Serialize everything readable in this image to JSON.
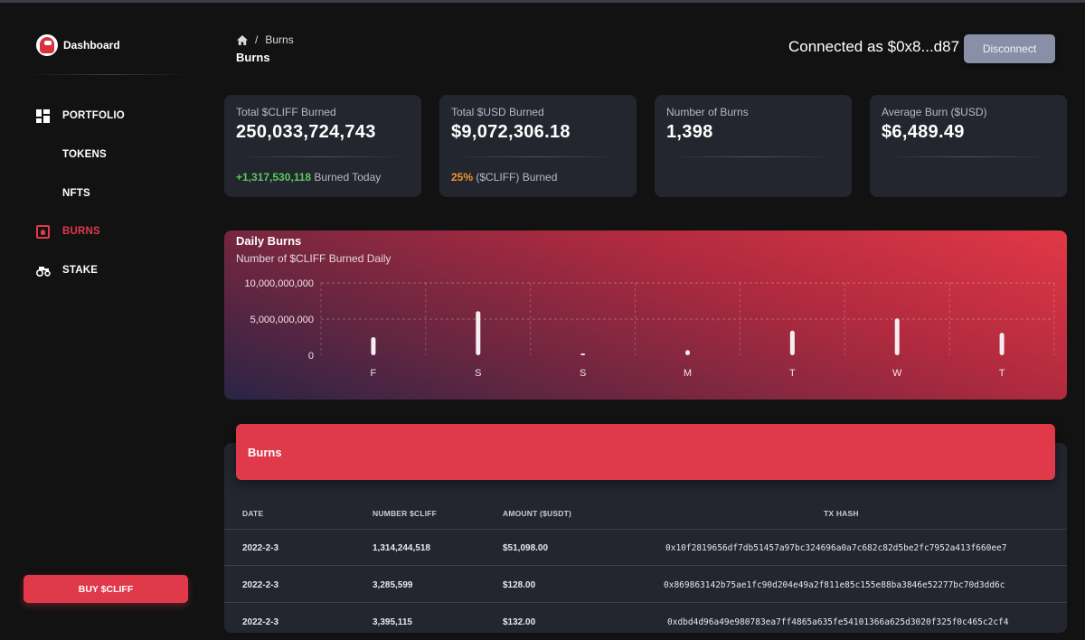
{
  "sidebar": {
    "brand_title": "Dashboard",
    "items": [
      {
        "label": "PORTFOLIO",
        "icon": "grid-icon"
      },
      {
        "label": "TOKENS",
        "icon": ""
      },
      {
        "label": "NFTS",
        "icon": ""
      },
      {
        "label": "BURNS",
        "icon": "flame-icon"
      },
      {
        "label": "STAKE",
        "icon": "tractor-icon"
      }
    ],
    "buy_label": "BUY $CLIFF",
    "active_color": "#e0394a"
  },
  "header": {
    "breadcrumb_current": "Burns",
    "page_title": "Burns",
    "connected_text": "Connected as $0x8...d87",
    "disconnect_label": "Disconnect"
  },
  "stats": [
    {
      "label": "Total $CLIFF Burned",
      "value": "250,033,724,743",
      "foot_highlight": "+1,317,530,118",
      "foot_text": " Burned Today",
      "highlight_color": "#5cc85e"
    },
    {
      "label": "Total $USD Burned",
      "value": "$9,072,306.18",
      "foot_highlight": "25%",
      "foot_text": " ($CLIFF) Burned",
      "highlight_color": "#f09631"
    },
    {
      "label": "Number of Burns",
      "value": "1,398",
      "foot_highlight": "",
      "foot_text": ""
    },
    {
      "label": "Average Burn ($USD)",
      "value": "$6,489.49",
      "foot_highlight": "",
      "foot_text": ""
    }
  ],
  "chart_data": {
    "type": "bar",
    "title": "Daily Burns",
    "subtitle": "Number of $CLIFF Burned Daily",
    "categories": [
      "F",
      "S",
      "S",
      "M",
      "T",
      "W",
      "T"
    ],
    "values": [
      2500000000,
      6100000000,
      50000000,
      700000000,
      3400000000,
      5100000000,
      3100000000
    ],
    "yticks": [
      "10,000,000,000",
      "5,000,000,000",
      "0"
    ],
    "ylim": [
      0,
      10000000000
    ],
    "grid": true
  },
  "table": {
    "title": "Burns",
    "columns": [
      "DATE",
      "NUMBER $CLIFF",
      "AMOUNT ($USDT)",
      "TX HASH"
    ],
    "rows": [
      [
        "2022-2-3",
        "1,314,244,518",
        "$51,098.00",
        "0x10f2819656df7db51457a97bc324696a0a7c682c82d5be2fc7952a413f660ee7"
      ],
      [
        "2022-2-3",
        "3,285,599",
        "$128.00",
        "0x869863142b75ae1fc90d204e49a2f811e85c155e88ba3846e52277bc70d3dd6c"
      ],
      [
        "2022-2-3",
        "3,395,115",
        "$132.00",
        "0xdbd4d96a49e980783ea7ff4865a635fe54101366a625d3020f325f0c465c2cf4"
      ]
    ]
  }
}
